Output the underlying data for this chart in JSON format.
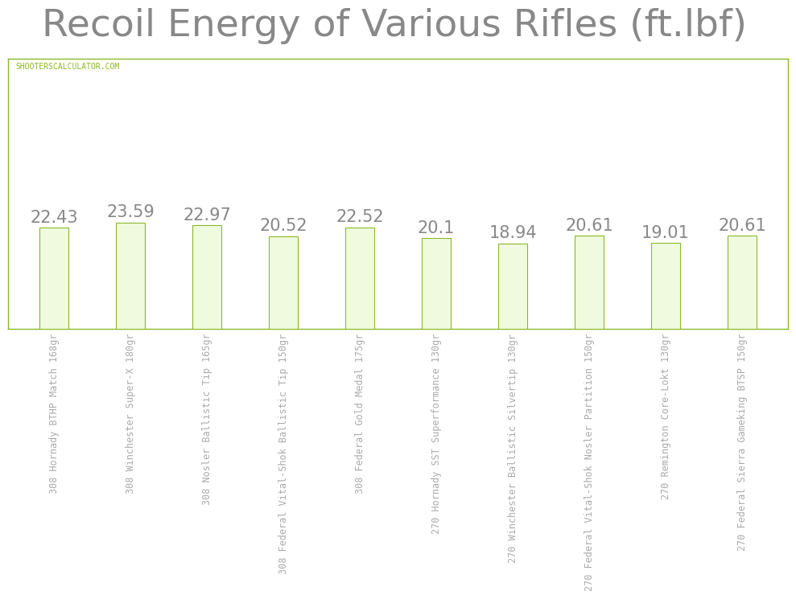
{
  "title": "Recoil Energy of Various Rifles (ft.lbf)",
  "categories": [
    "308 Hornady BTHP Match 168gr",
    "308 Winchester Super-X 180gr",
    "308 Nosler Ballistic Tip 165gr",
    "308 Federal Vital-Shok Ballistic Tip 150gr",
    "308 Federal Gold Medal 175gr",
    "270 Hornady SST Superformance 130gr",
    "270 Winchester Ballistic Silvertip 130gr",
    "270 Federal Vital-Shok Nosler Partition 150gr",
    "270 Remington Core-Lokt 130gr",
    "270 Federal Sierra Gameking BTSP 150gr"
  ],
  "values": [
    22.43,
    23.59,
    22.97,
    20.52,
    22.52,
    20.1,
    18.94,
    20.61,
    19.01,
    20.61
  ],
  "bar_color": "#f0fadf",
  "bar_edge_color": "#8cb828",
  "title_color": "#888888",
  "label_color": "#aaaaaa",
  "value_color": "#888888",
  "watermark": "SHOOTERSCALCULATOR.COM",
  "watermark_color": "#8cb828",
  "background_color": "#ffffff",
  "plot_bg_color": "#ffffff",
  "spine_color": "#8cb828",
  "grid_color": "#dddddd",
  "title_fontsize": 34,
  "value_fontsize": 15,
  "tick_fontsize": 8.5,
  "watermark_fontsize": 7,
  "ylim": [
    0,
    60
  ],
  "bar_width": 0.38
}
